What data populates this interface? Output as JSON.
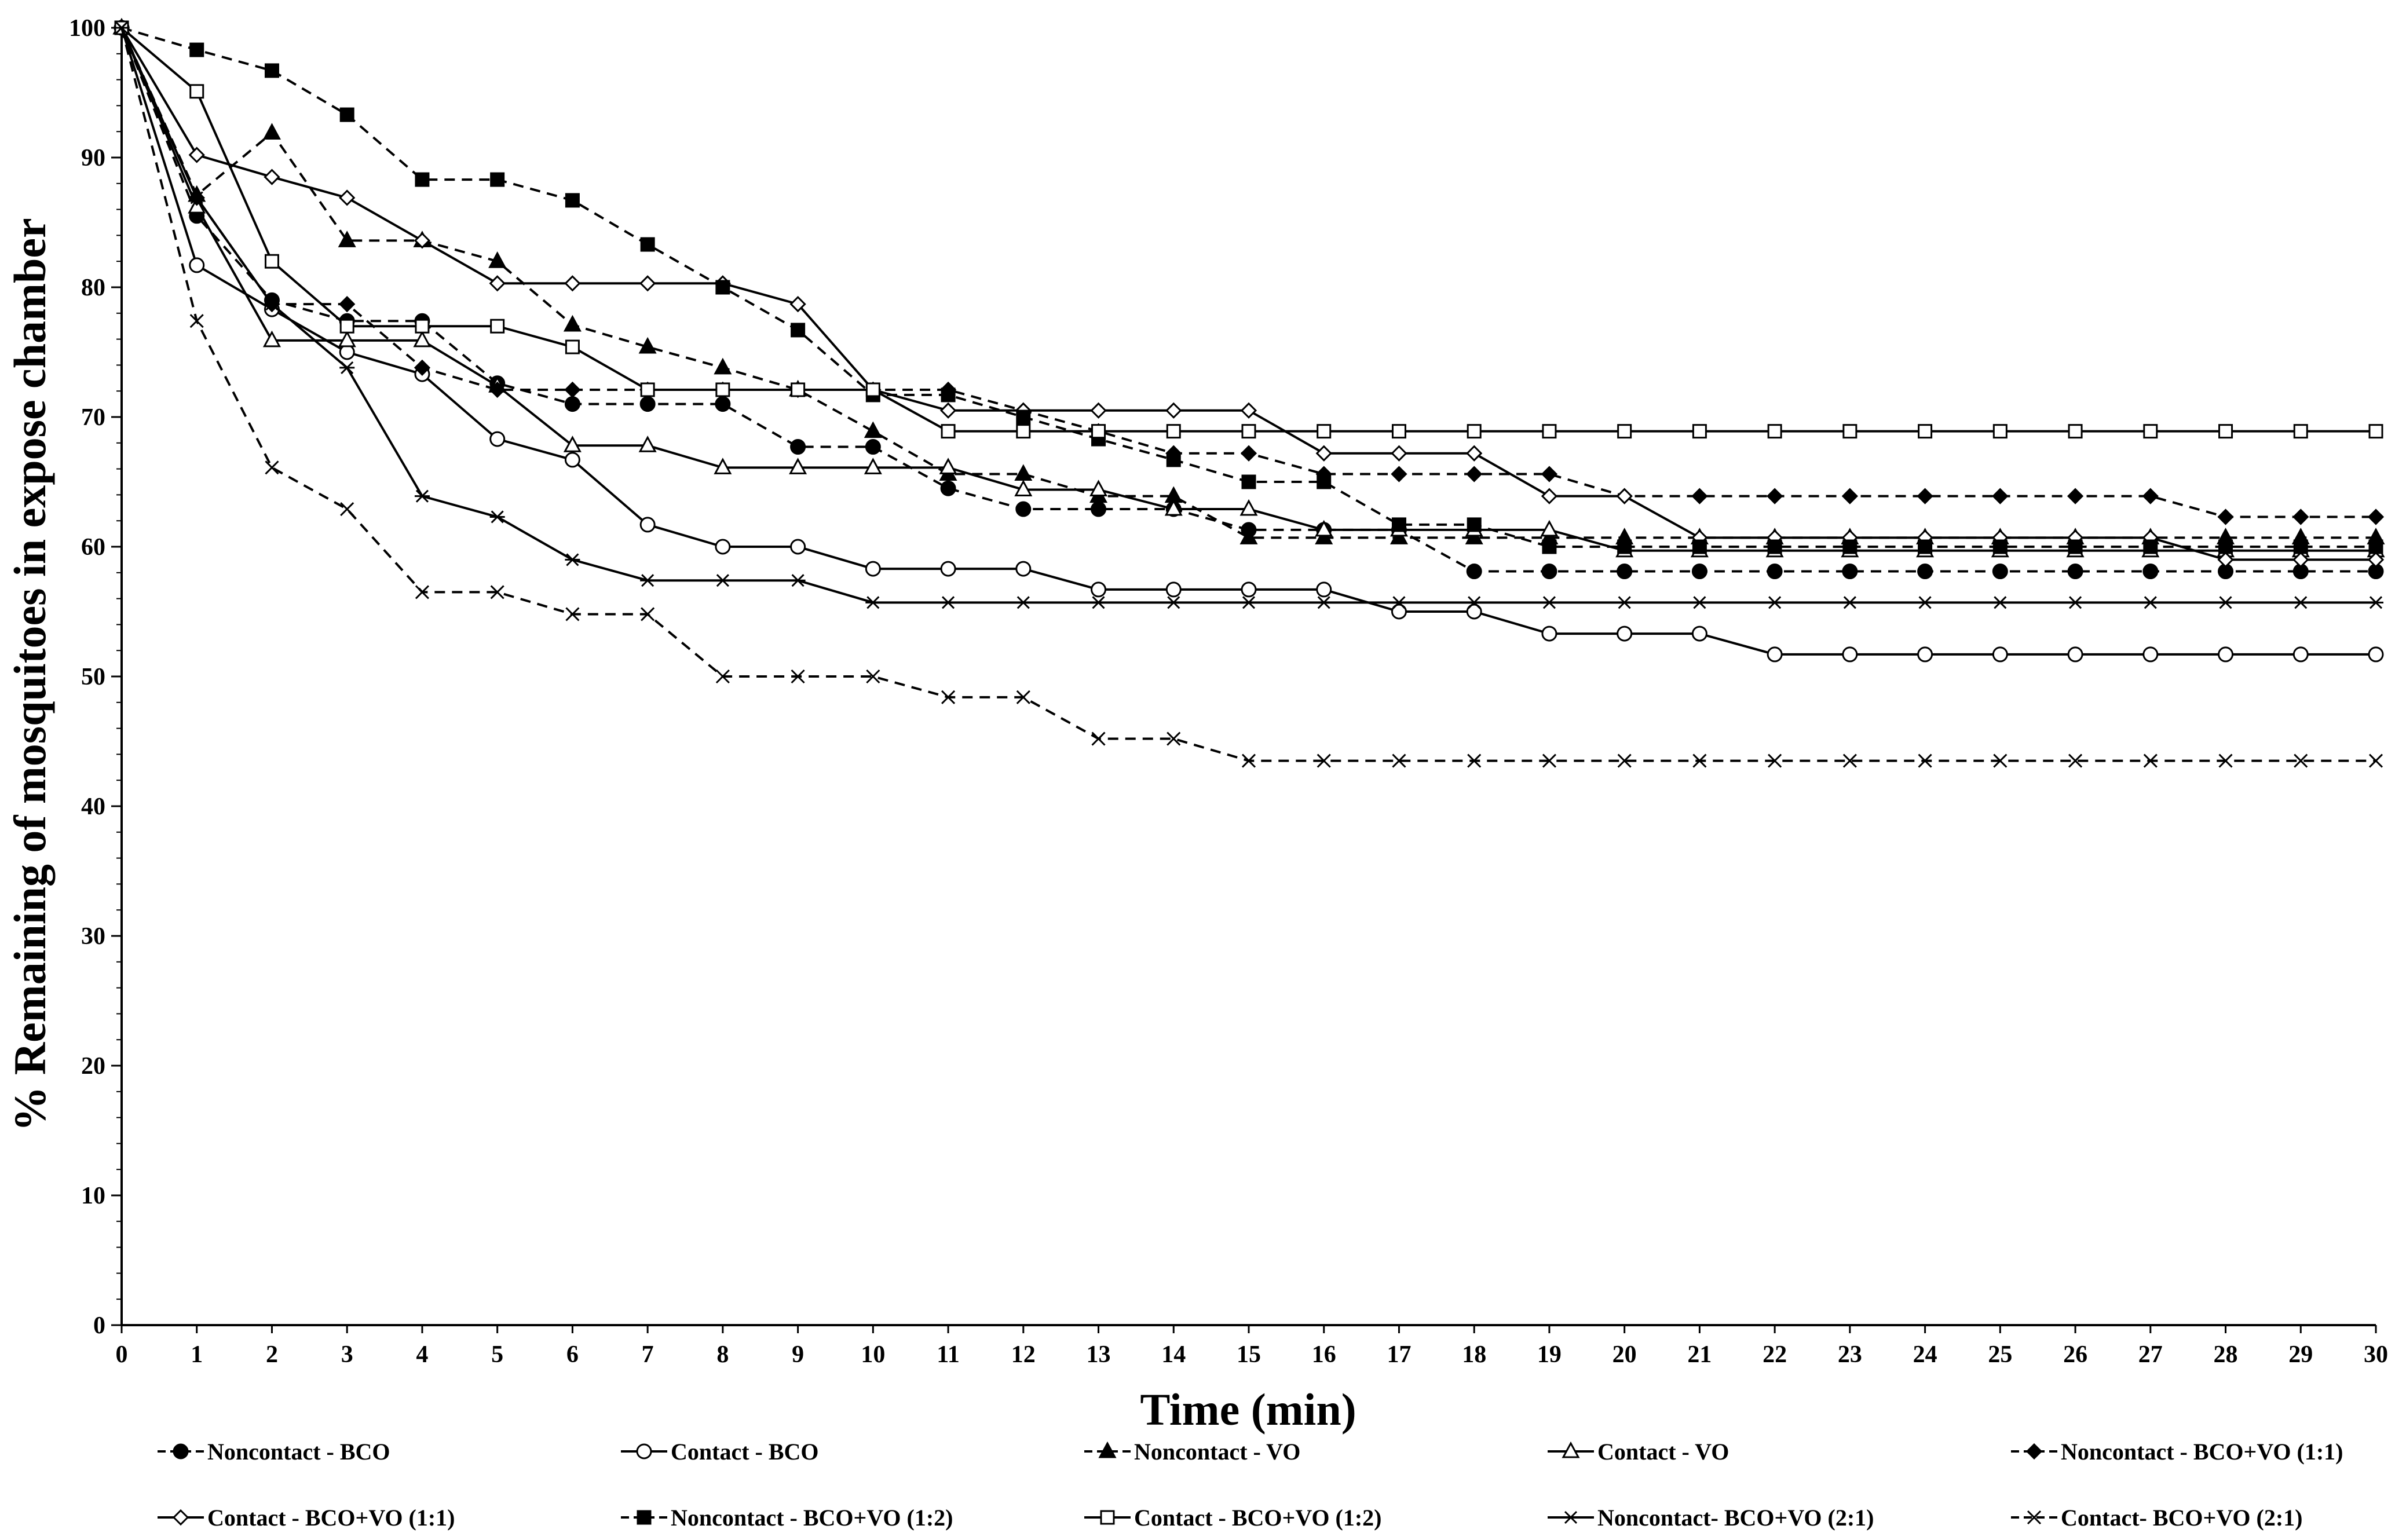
{
  "chart_data": {
    "type": "line",
    "title": "",
    "xlabel": "Time (min)",
    "ylabel": "% Remaining of mosquitoes in expose chamber",
    "xlim": [
      0,
      30
    ],
    "ylim": [
      0,
      100
    ],
    "x_ticks": [
      0,
      1,
      2,
      3,
      4,
      5,
      6,
      7,
      8,
      9,
      10,
      11,
      12,
      13,
      14,
      15,
      16,
      17,
      18,
      19,
      20,
      21,
      22,
      23,
      24,
      25,
      26,
      27,
      28,
      29,
      30
    ],
    "y_ticks": [
      0,
      10,
      20,
      30,
      40,
      50,
      60,
      70,
      80,
      90,
      100
    ],
    "grid": false,
    "legend_position": "bottom",
    "x": [
      0,
      1,
      2,
      3,
      4,
      5,
      6,
      7,
      8,
      9,
      10,
      11,
      12,
      13,
      14,
      15,
      16,
      17,
      18,
      19,
      20,
      21,
      22,
      23,
      24,
      25,
      26,
      27,
      28,
      29,
      30
    ],
    "series": [
      {
        "name": "Noncontact - BCO",
        "line": "dashed",
        "marker": "circle-filled",
        "values": [
          100,
          85.5,
          79,
          77.4,
          77.4,
          72.6,
          71,
          71,
          71,
          67.7,
          67.7,
          64.5,
          62.9,
          62.9,
          62.9,
          61.3,
          61.3,
          61.3,
          58.1,
          58.1,
          58.1,
          58.1,
          58.1,
          58.1,
          58.1,
          58.1,
          58.1,
          58.1,
          58.1,
          58.1,
          58.1
        ]
      },
      {
        "name": "Contact - BCO",
        "line": "solid",
        "marker": "circle-open",
        "values": [
          100,
          81.7,
          78.3,
          75,
          73.3,
          68.3,
          66.7,
          61.7,
          60,
          60,
          58.3,
          58.3,
          58.3,
          56.7,
          56.7,
          56.7,
          56.7,
          55,
          55,
          53.3,
          53.3,
          53.3,
          51.7,
          51.7,
          51.7,
          51.7,
          51.7,
          51.7,
          51.7,
          51.7,
          51.7
        ]
      },
      {
        "name": "Noncontact - VO",
        "line": "dashed",
        "marker": "triangle-filled",
        "values": [
          100,
          87.1,
          91.9,
          83.6,
          83.6,
          82,
          77.1,
          75.4,
          73.8,
          72.1,
          68.9,
          65.6,
          65.6,
          63.9,
          63.9,
          60.7,
          60.7,
          60.7,
          60.7,
          60.7,
          60.7,
          60.7,
          60.7,
          60.7,
          60.7,
          60.7,
          60.7,
          60.7,
          60.7,
          60.7,
          60.7
        ]
      },
      {
        "name": "Contact - VO",
        "line": "solid",
        "marker": "triangle-open",
        "values": [
          100,
          86.2,
          75.9,
          75.9,
          75.9,
          72.4,
          67.8,
          67.8,
          66.1,
          66.1,
          66.1,
          66.1,
          64.4,
          64.4,
          62.9,
          62.9,
          61.3,
          61.3,
          61.3,
          61.3,
          59.7,
          59.7,
          59.7,
          59.7,
          59.7,
          59.7,
          59.7,
          59.7,
          59.7,
          59.7,
          59.7
        ]
      },
      {
        "name": "Noncontact - BCO+VO (1:1)",
        "line": "dashed",
        "marker": "diamond-filled",
        "values": [
          100,
          86.9,
          78.7,
          78.7,
          73.8,
          72.1,
          72.1,
          72.1,
          72.1,
          72.1,
          72.1,
          72.1,
          70.5,
          68.9,
          67.2,
          67.2,
          65.6,
          65.6,
          65.6,
          65.6,
          63.9,
          63.9,
          63.9,
          63.9,
          63.9,
          63.9,
          63.9,
          63.9,
          62.3,
          62.3,
          62.3
        ]
      },
      {
        "name": "Contact - BCO+VO (1:1)",
        "line": "solid",
        "marker": "diamond-open",
        "values": [
          100,
          90.2,
          88.5,
          86.9,
          83.6,
          80.3,
          80.3,
          80.3,
          80.3,
          78.7,
          72.1,
          70.5,
          70.5,
          70.5,
          70.5,
          70.5,
          67.2,
          67.2,
          67.2,
          63.9,
          63.9,
          60.7,
          60.7,
          60.7,
          60.7,
          60.7,
          60.7,
          60.7,
          59,
          59,
          59
        ]
      },
      {
        "name": "Noncontact - BCO+VO (1:2)",
        "line": "dashed",
        "marker": "square-filled",
        "values": [
          100,
          98.3,
          96.7,
          93.3,
          88.3,
          88.3,
          86.7,
          83.3,
          80,
          76.7,
          71.7,
          71.7,
          70,
          68.3,
          66.7,
          65,
          65,
          61.7,
          61.7,
          60,
          60,
          60,
          60,
          60,
          60,
          60,
          60,
          60,
          60,
          60,
          60
        ]
      },
      {
        "name": "Contact - BCO+VO (1:2)",
        "line": "solid",
        "marker": "square-open",
        "values": [
          100,
          95.1,
          82,
          77,
          77,
          77,
          75.4,
          72.1,
          72.1,
          72.1,
          72.1,
          68.9,
          68.9,
          68.9,
          68.9,
          68.9,
          68.9,
          68.9,
          68.9,
          68.9,
          68.9,
          68.9,
          68.9,
          68.9,
          68.9,
          68.9,
          68.9,
          68.9,
          68.9,
          68.9,
          68.9
        ]
      },
      {
        "name": "Noncontact- BCO+VO (2:1)",
        "line": "solid",
        "marker": "star",
        "values": [
          100,
          86.9,
          78.7,
          73.8,
          63.9,
          62.3,
          59,
          57.4,
          57.4,
          57.4,
          55.7,
          55.7,
          55.7,
          55.7,
          55.7,
          55.7,
          55.7,
          55.7,
          55.7,
          55.7,
          55.7,
          55.7,
          55.7,
          55.7,
          55.7,
          55.7,
          55.7,
          55.7,
          55.7,
          55.7,
          55.7
        ]
      },
      {
        "name": "Contact- BCO+VO (2:1)",
        "line": "dashed",
        "marker": "x",
        "values": [
          100,
          77.4,
          66.1,
          62.9,
          56.5,
          56.5,
          54.8,
          54.8,
          50,
          50,
          50,
          48.4,
          48.4,
          45.2,
          45.2,
          43.5,
          43.5,
          43.5,
          43.5,
          43.5,
          43.5,
          43.5,
          43.5,
          43.5,
          43.5,
          43.5,
          43.5,
          43.5,
          43.5,
          43.5,
          43.5
        ]
      }
    ]
  }
}
